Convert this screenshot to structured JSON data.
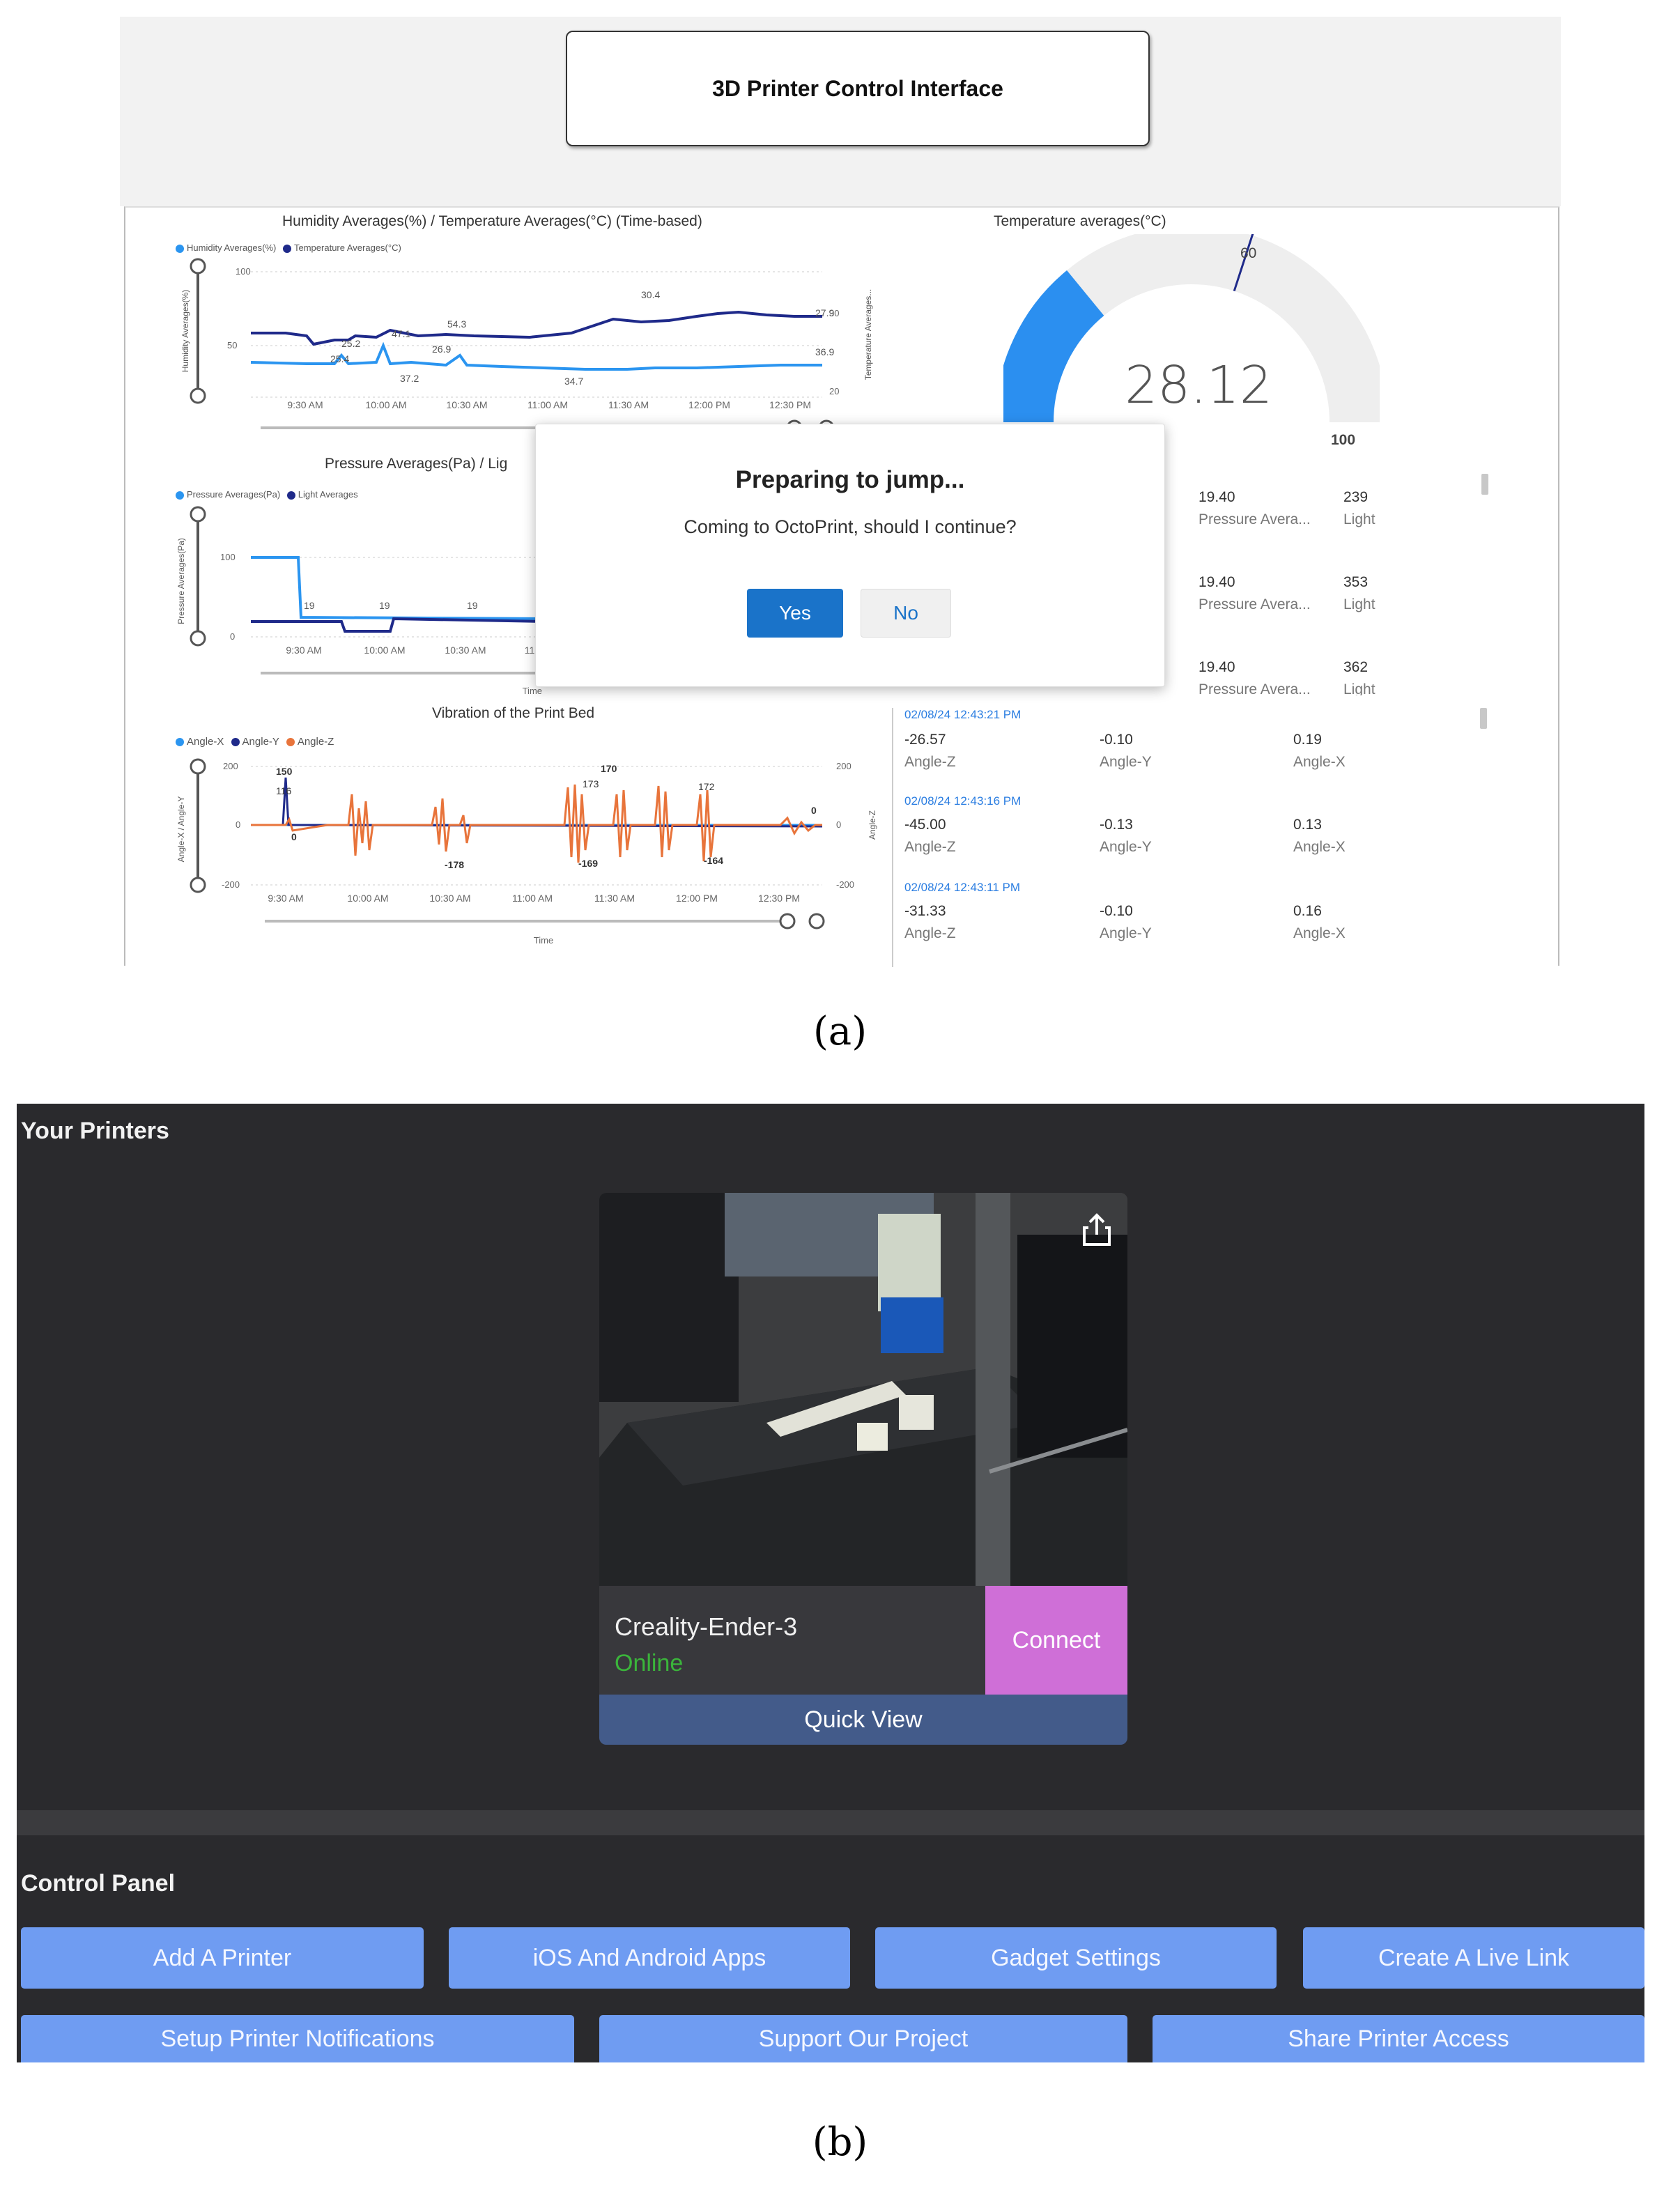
{
  "panel_a": {
    "title": "3D Printer Control Interface",
    "humidity_chart": {
      "title": "Humidity Averages(%) / Temperature Averages(°C) (Time-based)",
      "legend": [
        "Humidity Averages(%)",
        "Temperature Averages(°C)"
      ],
      "y_left_label": "Humidity Averages(%)",
      "y_right_label": "Temperature Averages...",
      "y_left_ticks": [
        "100",
        "50",
        "0"
      ],
      "y_right_ticks": [
        "30",
        "20"
      ],
      "x_ticks": [
        "9:30 AM",
        "10:00 AM",
        "10:30 AM",
        "11:00 AM",
        "11:30 AM",
        "12:00 PM",
        "12:30 PM"
      ],
      "data_labels": [
        "25.2",
        "47.1",
        "54.3",
        "30.4",
        "27.9",
        "25.4",
        "26.9",
        "37.2",
        "34.7",
        "36.9"
      ]
    },
    "pressure_chart": {
      "title": "Pressure Averages(Pa) / Lig",
      "legend": [
        "Pressure Averages(Pa)",
        "Light Averages"
      ],
      "y_label": "Pressure Averages(Pa)",
      "y_ticks": [
        "100",
        "0"
      ],
      "x_ticks": [
        "9:30 AM",
        "10:00 AM",
        "10:30 AM",
        "11"
      ],
      "data_labels": [
        "19",
        "19",
        "19"
      ],
      "x_label": "Time"
    },
    "vibration_chart": {
      "title": "Vibration of the Print Bed",
      "legend": [
        "Angle-X",
        "Angle-Y",
        "Angle-Z"
      ],
      "y_left_label": "Angle-X / Angle-Y",
      "y_right_label": "Angle-Z",
      "y_left_ticks": [
        "200",
        "0",
        "-200"
      ],
      "y_right_ticks": [
        "200",
        "0",
        "-200"
      ],
      "x_ticks": [
        "9:30 AM",
        "10:00 AM",
        "10:30 AM",
        "11:00 AM",
        "11:30 AM",
        "12:00 PM",
        "12:30 PM"
      ],
      "data_labels": [
        "150",
        "116",
        "0",
        "170",
        "173",
        "172",
        "-178",
        "-169",
        "-164",
        "0"
      ],
      "x_label": "Time"
    },
    "gauge": {
      "title": "Temperature averages(°C)",
      "value": "28.12",
      "max_label": "100",
      "target_label": "60",
      "value_fraction": 0.2812,
      "target_fraction": 0.6
    },
    "sensor_rows": [
      {
        "v1": "19.40",
        "l1": "Pressure Avera...",
        "v2": "239",
        "l2": "Light"
      },
      {
        "v1": "19.40",
        "l1": "Pressure Avera...",
        "v2": "353",
        "l2": "Light"
      },
      {
        "v1": "19.40",
        "l1": "Pressure Avera...",
        "v2": "362",
        "l2": "Light"
      }
    ],
    "angle_rows": [
      {
        "time": "02/08/24 12:43:21 PM",
        "z": "-26.57",
        "zl": "Angle-Z",
        "y": "-0.10",
        "yl": "Angle-Y",
        "x": "0.19",
        "xl": "Angle-X"
      },
      {
        "time": "02/08/24 12:43:16 PM",
        "z": "-45.00",
        "zl": "Angle-Z",
        "y": "-0.13",
        "yl": "Angle-Y",
        "x": "0.13",
        "xl": "Angle-X"
      },
      {
        "time": "02/08/24 12:43:11 PM",
        "z": "-31.33",
        "zl": "Angle-Z",
        "y": "-0.10",
        "yl": "Angle-Y",
        "x": "0.16",
        "xl": "Angle-X"
      }
    ],
    "dialog": {
      "title": "Preparing to jump...",
      "message": "Coming to OctoPrint, should I continue?",
      "yes": "Yes",
      "no": "No"
    },
    "caption": "(a)"
  },
  "panel_b": {
    "your_printers": "Your Printers",
    "printer": {
      "name": "Creality-Ender-3",
      "status": "Online",
      "connect": "Connect",
      "quick_view": "Quick View",
      "status_color": "#3bb53b",
      "connect_color": "#cf6fd7"
    },
    "control_panel": "Control Panel",
    "buttons_row1": [
      "Add A Printer",
      "iOS And Android Apps",
      "Gadget Settings",
      "Create A Live Link"
    ],
    "buttons_row2": [
      "Setup Printer Notifications",
      "Support Our Project",
      "Share Printer Access"
    ],
    "button_color": "#6f9cf2",
    "caption": "(b)"
  }
}
